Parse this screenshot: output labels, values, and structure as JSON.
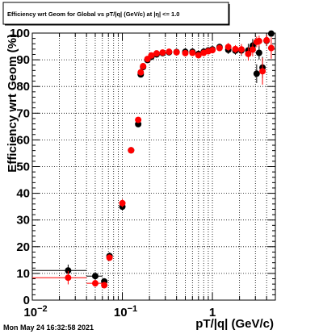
{
  "chart_data": {
    "type": "scatter",
    "title": "Efficiency wrt Geom for Global vs pT/|q| (GeV/c) at |η| <= 1.0",
    "xlabel": "pT/|q| (GeV/c)",
    "ylabel": "Efficiency wrt Geom (%)",
    "xscale": "log",
    "xlim": [
      0.01,
      5.0
    ],
    "ylim": [
      0,
      100
    ],
    "grid": true,
    "legend": "none",
    "x_tick_labels": [
      {
        "value": 0.01,
        "base": "10",
        "exp": "−2"
      },
      {
        "value": 0.1,
        "base": "10",
        "exp": "−1"
      },
      {
        "value": 1,
        "base": "1",
        "exp": ""
      }
    ],
    "y_tick_labels": [
      "0",
      "10",
      "20",
      "30",
      "40",
      "50",
      "60",
      "70",
      "80",
      "90",
      "100"
    ],
    "timestamp": "Mon May 24 16:32:58 2021",
    "series": [
      {
        "color": "#000000",
        "points": [
          {
            "x": 0.025,
            "y": 11.1,
            "xerr": 0.015,
            "yerr": 2.2
          },
          {
            "x": 0.05,
            "y": 9.0,
            "xerr": 0.01,
            "yerr": 1.5
          },
          {
            "x": 0.063,
            "y": 7.0,
            "xerr": 0.003,
            "yerr": 1.2
          },
          {
            "x": 0.072,
            "y": 16.5,
            "xerr": 0.004,
            "yerr": 1.3
          },
          {
            "x": 0.1,
            "y": 35.0,
            "xerr": 0.007,
            "yerr": 1.5
          },
          {
            "x": 0.125,
            "y": 56.1,
            "xerr": 0.004,
            "yerr": 1.0
          },
          {
            "x": 0.15,
            "y": 65.9,
            "xerr": 0.004,
            "yerr": 1.0
          },
          {
            "x": 0.16,
            "y": 84.5,
            "xerr": 0.004,
            "yerr": 1.0
          },
          {
            "x": 0.17,
            "y": 87.3,
            "xerr": 0.004,
            "yerr": 1.0
          },
          {
            "x": 0.19,
            "y": 89.9,
            "xerr": 0.004,
            "yerr": 0.8
          },
          {
            "x": 0.21,
            "y": 91.1,
            "xerr": 0.004,
            "yerr": 0.8
          },
          {
            "x": 0.24,
            "y": 92.0,
            "xerr": 0.004,
            "yerr": 0.8
          },
          {
            "x": 0.28,
            "y": 92.5,
            "xerr": 0.004,
            "yerr": 0.8
          },
          {
            "x": 0.33,
            "y": 92.8,
            "xerr": 0.004,
            "yerr": 0.8
          },
          {
            "x": 0.4,
            "y": 92.9,
            "xerr": 0.005,
            "yerr": 0.8
          },
          {
            "x": 0.5,
            "y": 93.0,
            "xerr": 0.006,
            "yerr": 0.8
          },
          {
            "x": 0.6,
            "y": 93.0,
            "xerr": 0.006,
            "yerr": 1.0
          },
          {
            "x": 0.7,
            "y": 92.2,
            "xerr": 0.007,
            "yerr": 1.2
          },
          {
            "x": 0.8,
            "y": 93.0,
            "xerr": 0.008,
            "yerr": 1.2
          },
          {
            "x": 0.9,
            "y": 93.5,
            "xerr": 0.01,
            "yerr": 1.2
          },
          {
            "x": 1.0,
            "y": 93.9,
            "xerr": 0.01,
            "yerr": 1.2
          },
          {
            "x": 1.2,
            "y": 94.8,
            "xerr": 0.012,
            "yerr": 1.2
          },
          {
            "x": 1.5,
            "y": 93.7,
            "xerr": 0.015,
            "yerr": 1.5
          },
          {
            "x": 1.8,
            "y": 93.4,
            "xerr": 0.02,
            "yerr": 1.5
          },
          {
            "x": 2.1,
            "y": 93.5,
            "xerr": 0.02,
            "yerr": 2.0
          },
          {
            "x": 2.5,
            "y": 93.5,
            "xerr": 0.03,
            "yerr": 2.5
          },
          {
            "x": 2.8,
            "y": 95.3,
            "xerr": 0.03,
            "yerr": 2.5
          },
          {
            "x": 3.1,
            "y": 84.8,
            "xerr": 0.03,
            "yerr": 3.5
          },
          {
            "x": 3.3,
            "y": 92.6,
            "xerr": 0.03,
            "yerr": 2.5
          },
          {
            "x": 3.6,
            "y": 87.1,
            "xerr": 0.03,
            "yerr": 4.0
          },
          {
            "x": 4.0,
            "y": 97.1,
            "xerr": 0.04,
            "yerr": 2.0
          },
          {
            "x": 4.5,
            "y": 99.8,
            "xerr": 0.04,
            "yerr": 1.0
          }
        ]
      },
      {
        "color": "#ff0000",
        "points": [
          {
            "x": 0.025,
            "y": 8.4,
            "xerr": 0.015,
            "yerr": 2.5
          },
          {
            "x": 0.05,
            "y": 6.3,
            "xerr": 0.01,
            "yerr": 1.3
          },
          {
            "x": 0.063,
            "y": 5.6,
            "xerr": 0.003,
            "yerr": 1.1
          },
          {
            "x": 0.072,
            "y": 15.9,
            "xerr": 0.004,
            "yerr": 1.2
          },
          {
            "x": 0.1,
            "y": 36.3,
            "xerr": 0.007,
            "yerr": 1.5
          },
          {
            "x": 0.125,
            "y": 56.1,
            "xerr": 0.004,
            "yerr": 1.0
          },
          {
            "x": 0.15,
            "y": 67.5,
            "xerr": 0.004,
            "yerr": 1.0
          },
          {
            "x": 0.16,
            "y": 85.3,
            "xerr": 0.004,
            "yerr": 1.0
          },
          {
            "x": 0.17,
            "y": 87.6,
            "xerr": 0.004,
            "yerr": 1.0
          },
          {
            "x": 0.19,
            "y": 90.3,
            "xerr": 0.004,
            "yerr": 0.8
          },
          {
            "x": 0.21,
            "y": 91.6,
            "xerr": 0.004,
            "yerr": 0.8
          },
          {
            "x": 0.24,
            "y": 92.4,
            "xerr": 0.004,
            "yerr": 0.8
          },
          {
            "x": 0.28,
            "y": 92.7,
            "xerr": 0.004,
            "yerr": 0.8
          },
          {
            "x": 0.33,
            "y": 93.0,
            "xerr": 0.004,
            "yerr": 0.8
          },
          {
            "x": 0.4,
            "y": 92.8,
            "xerr": 0.005,
            "yerr": 0.8
          },
          {
            "x": 0.5,
            "y": 92.5,
            "xerr": 0.006,
            "yerr": 0.8
          },
          {
            "x": 0.6,
            "y": 92.6,
            "xerr": 0.006,
            "yerr": 1.0
          },
          {
            "x": 0.7,
            "y": 91.7,
            "xerr": 0.007,
            "yerr": 1.2
          },
          {
            "x": 0.8,
            "y": 92.6,
            "xerr": 0.008,
            "yerr": 1.2
          },
          {
            "x": 0.9,
            "y": 93.2,
            "xerr": 0.01,
            "yerr": 1.2
          },
          {
            "x": 1.0,
            "y": 93.6,
            "xerr": 0.01,
            "yerr": 1.2
          },
          {
            "x": 1.2,
            "y": 94.4,
            "xerr": 0.012,
            "yerr": 1.2
          },
          {
            "x": 1.5,
            "y": 94.8,
            "xerr": 0.015,
            "yerr": 1.5
          },
          {
            "x": 1.8,
            "y": 94.0,
            "xerr": 0.02,
            "yerr": 1.5
          },
          {
            "x": 2.1,
            "y": 93.9,
            "xerr": 0.02,
            "yerr": 2.0
          },
          {
            "x": 2.5,
            "y": 92.2,
            "xerr": 0.03,
            "yerr": 2.5
          },
          {
            "x": 2.8,
            "y": 93.8,
            "xerr": 0.03,
            "yerr": 2.5
          },
          {
            "x": 3.1,
            "y": 96.7,
            "xerr": 0.03,
            "yerr": 2.0
          },
          {
            "x": 3.3,
            "y": 97.0,
            "xerr": 0.03,
            "yerr": 2.0
          },
          {
            "x": 3.6,
            "y": 85.7,
            "xerr": 0.03,
            "yerr": 5.0
          },
          {
            "x": 4.0,
            "y": 97.3,
            "xerr": 0.04,
            "yerr": 2.0
          },
          {
            "x": 4.5,
            "y": 94.4,
            "xerr": 0.04,
            "yerr": 4.0
          }
        ]
      }
    ]
  }
}
